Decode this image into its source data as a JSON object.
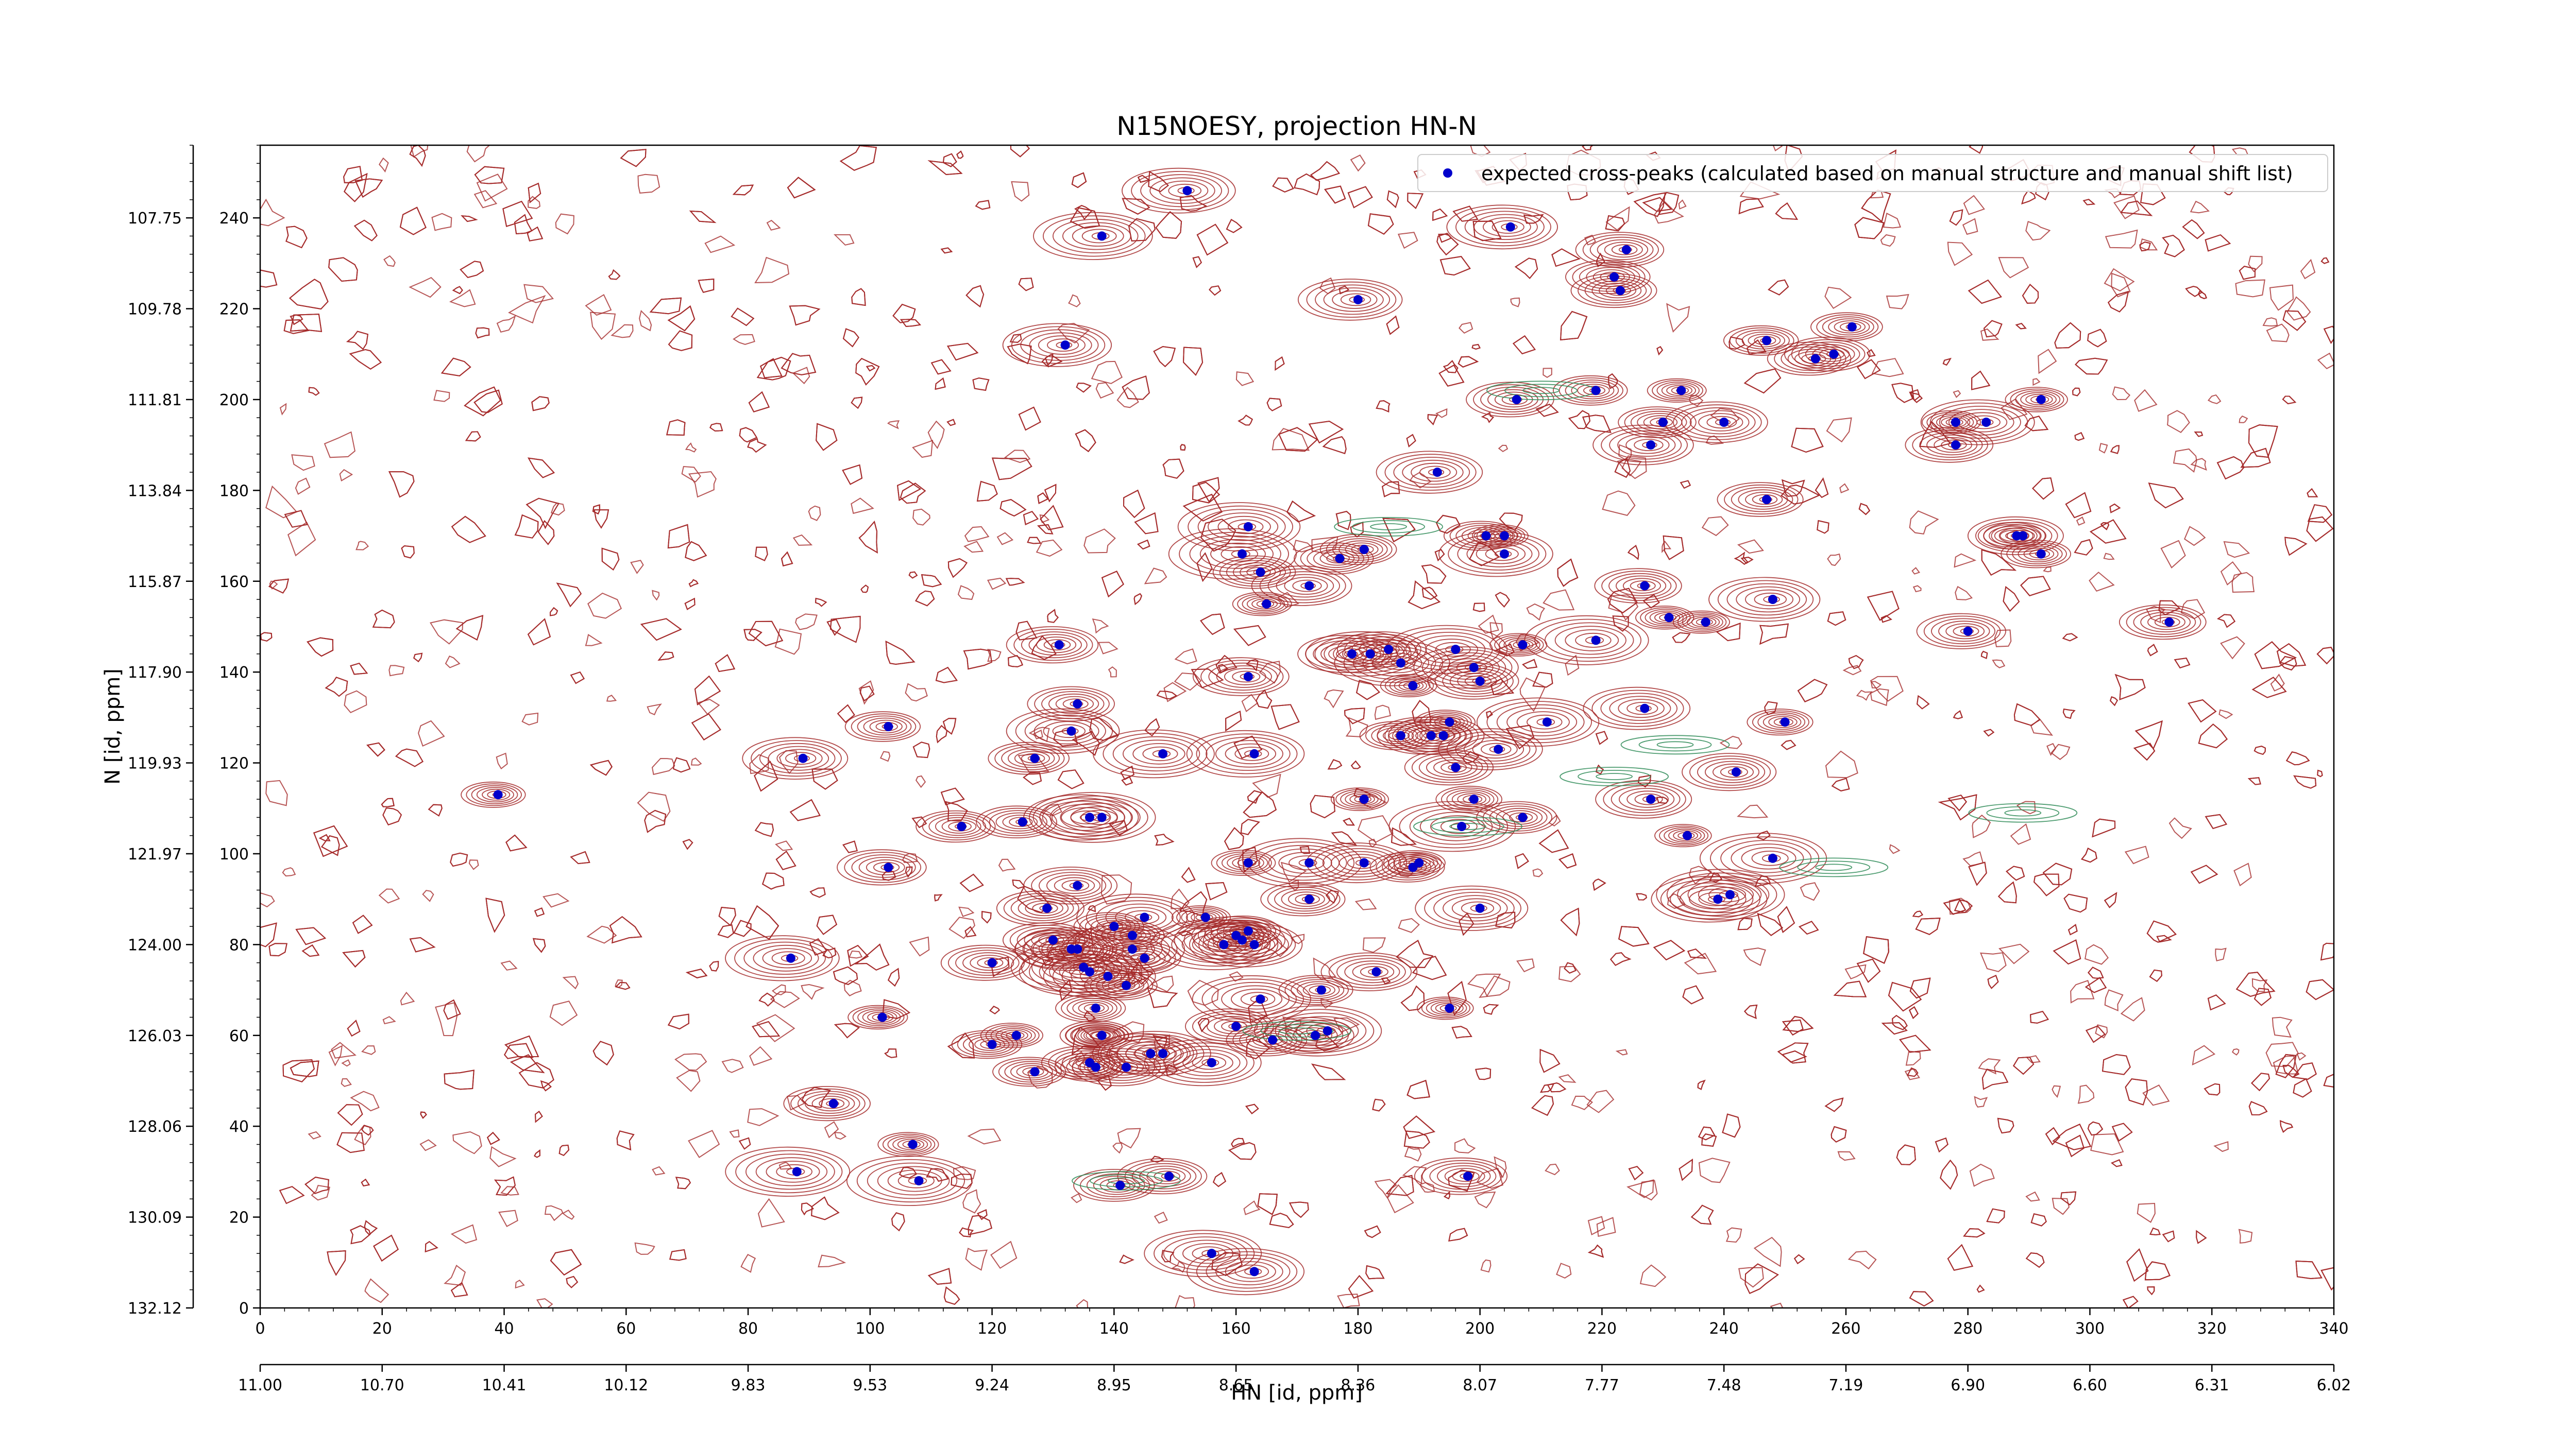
{
  "chart_data": {
    "type": "scatter",
    "title": "N15NOESY, projection HN-N",
    "xlabel": "HN [id, ppm]",
    "ylabel": "N [id, ppm]",
    "xlim": [
      0,
      340
    ],
    "ylim": [
      0,
      256
    ],
    "x_ticks": [
      "0",
      "20",
      "40",
      "60",
      "80",
      "100",
      "120",
      "140",
      "160",
      "180",
      "200",
      "220",
      "240",
      "260",
      "280",
      "300",
      "320",
      "340"
    ],
    "x_ppm_ticks": [
      "11.00",
      "10.70",
      "10.41",
      "10.12",
      "9.83",
      "9.53",
      "9.24",
      "8.95",
      "8.65",
      "8.36",
      "8.07",
      "7.77",
      "7.48",
      "7.19",
      "6.90",
      "6.60",
      "6.31",
      "6.02"
    ],
    "y_ticks": [
      "0",
      "20",
      "40",
      "60",
      "80",
      "100",
      "120",
      "140",
      "160",
      "180",
      "200",
      "220",
      "240"
    ],
    "y_ppm_ticks": [
      "132.12",
      "130.09",
      "128.06",
      "126.03",
      "124.00",
      "121.97",
      "119.93",
      "117.90",
      "115.87",
      "113.84",
      "111.81",
      "109.78",
      "107.75"
    ],
    "grid": false,
    "legend_position": "top-right",
    "contour_colors": {
      "positive": "#a52a2a",
      "negative": "#2e8b57"
    },
    "series": [
      {
        "name": "expected cross-peaks (calculated based on manual structure and manual shift list)",
        "color": "#0000cc",
        "points": [
          [
            152,
            246
          ],
          [
            138,
            236
          ],
          [
            205,
            238
          ],
          [
            132,
            212
          ],
          [
            180,
            222
          ],
          [
            222,
            227
          ],
          [
            224,
            233
          ],
          [
            223,
            224
          ],
          [
            247,
            213
          ],
          [
            255,
            209
          ],
          [
            258,
            210
          ],
          [
            261,
            216
          ],
          [
            206,
            200
          ],
          [
            219,
            202
          ],
          [
            230,
            195
          ],
          [
            228,
            190
          ],
          [
            233,
            202
          ],
          [
            240,
            195
          ],
          [
            247,
            178
          ],
          [
            278,
            195
          ],
          [
            278,
            190
          ],
          [
            283,
            195
          ],
          [
            292,
            200
          ],
          [
            289,
            170
          ],
          [
            288,
            170
          ],
          [
            292,
            166
          ],
          [
            193,
            184
          ],
          [
            201,
            170
          ],
          [
            204,
            170
          ],
          [
            204,
            166
          ],
          [
            177,
            165
          ],
          [
            181,
            167
          ],
          [
            162,
            172
          ],
          [
            161,
            166
          ],
          [
            164,
            162
          ],
          [
            165,
            155
          ],
          [
            172,
            159
          ],
          [
            227,
            159
          ],
          [
            231,
            152
          ],
          [
            248,
            156
          ],
          [
            219,
            147
          ],
          [
            237,
            151
          ],
          [
            280,
            149
          ],
          [
            313,
            151
          ],
          [
            196,
            145
          ],
          [
            199,
            141
          ],
          [
            200,
            138
          ],
          [
            207,
            146
          ],
          [
            185,
            145
          ],
          [
            179,
            144
          ],
          [
            182,
            144
          ],
          [
            187,
            142
          ],
          [
            189,
            137
          ],
          [
            162,
            139
          ],
          [
            131,
            146
          ],
          [
            134,
            133
          ],
          [
            133,
            127
          ],
          [
            103,
            128
          ],
          [
            89,
            121
          ],
          [
            127,
            121
          ],
          [
            148,
            122
          ],
          [
            163,
            122
          ],
          [
            187,
            126
          ],
          [
            192,
            126
          ],
          [
            195,
            129
          ],
          [
            196,
            119
          ],
          [
            194,
            126
          ],
          [
            203,
            123
          ],
          [
            211,
            129
          ],
          [
            227,
            132
          ],
          [
            250,
            129
          ],
          [
            242,
            118
          ],
          [
            39,
            113
          ],
          [
            181,
            112
          ],
          [
            199,
            112
          ],
          [
            228,
            112
          ],
          [
            136,
            108
          ],
          [
            125,
            107
          ],
          [
            115,
            106
          ],
          [
            138,
            108
          ],
          [
            197,
            106
          ],
          [
            234,
            104
          ],
          [
            248,
            99
          ],
          [
            103,
            97
          ],
          [
            207,
            108
          ],
          [
            162,
            98
          ],
          [
            172,
            98
          ],
          [
            181,
            98
          ],
          [
            189,
            97
          ],
          [
            190,
            98
          ],
          [
            239,
            90
          ],
          [
            241,
            91
          ],
          [
            200,
            88
          ],
          [
            172,
            90
          ],
          [
            129,
            88
          ],
          [
            134,
            93
          ],
          [
            145,
            86
          ],
          [
            140,
            84
          ],
          [
            143,
            79
          ],
          [
            145,
            77
          ],
          [
            143,
            82
          ],
          [
            155,
            86
          ],
          [
            158,
            80
          ],
          [
            130,
            81
          ],
          [
            134,
            79
          ],
          [
            135,
            75
          ],
          [
            136,
            74
          ],
          [
            139,
            73
          ],
          [
            142,
            71
          ],
          [
            160,
            82
          ],
          [
            163,
            80
          ],
          [
            162,
            83
          ],
          [
            161,
            81
          ],
          [
            120,
            76
          ],
          [
            87,
            77
          ],
          [
            133,
            79
          ],
          [
            164,
            68
          ],
          [
            174,
            70
          ],
          [
            183,
            74
          ],
          [
            195,
            66
          ],
          [
            137,
            66
          ],
          [
            138,
            60
          ],
          [
            146,
            56
          ],
          [
            148,
            56
          ],
          [
            160,
            62
          ],
          [
            156,
            54
          ],
          [
            166,
            59
          ],
          [
            173,
            60
          ],
          [
            175,
            61
          ],
          [
            120,
            58
          ],
          [
            124,
            60
          ],
          [
            127,
            52
          ],
          [
            136,
            54
          ],
          [
            137,
            53
          ],
          [
            138,
            60
          ],
          [
            142,
            53
          ],
          [
            102,
            64
          ],
          [
            94,
            45
          ],
          [
            107,
            36
          ],
          [
            108,
            28
          ],
          [
            88,
            30
          ],
          [
            141,
            27
          ],
          [
            149,
            29
          ],
          [
            198,
            29
          ],
          [
            156,
            12
          ],
          [
            163,
            8
          ]
        ]
      }
    ]
  }
}
